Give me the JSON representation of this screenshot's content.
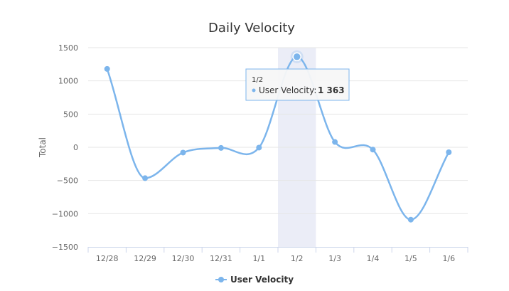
{
  "chart_data": {
    "type": "line",
    "title": "Daily Velocity",
    "xlabel": "",
    "ylabel": "Total",
    "categories": [
      "12/28",
      "12/29",
      "12/30",
      "12/31",
      "1/1",
      "1/2",
      "1/3",
      "1/4",
      "1/5",
      "1/6"
    ],
    "series": [
      {
        "name": "User Velocity",
        "color": "#7cb5ec",
        "values": [
          1180,
          -465,
          -80,
          -10,
          -5,
          1363,
          80,
          -35,
          -1090,
          -75
        ]
      }
    ],
    "ylim": [
      -1500,
      1500
    ],
    "yticks": [
      1500,
      1000,
      500,
      0,
      -500,
      -1000,
      -1500
    ],
    "ytick_labels": [
      "1500",
      "1000",
      "500",
      "0",
      "−500",
      "−1000",
      "−1500"
    ],
    "grid": true,
    "legend_position": "bottom-center",
    "highlighted_category": "1/2",
    "tooltip": {
      "header": "1/2",
      "series_label": "User Velocity:",
      "value_label": "1 363"
    }
  }
}
